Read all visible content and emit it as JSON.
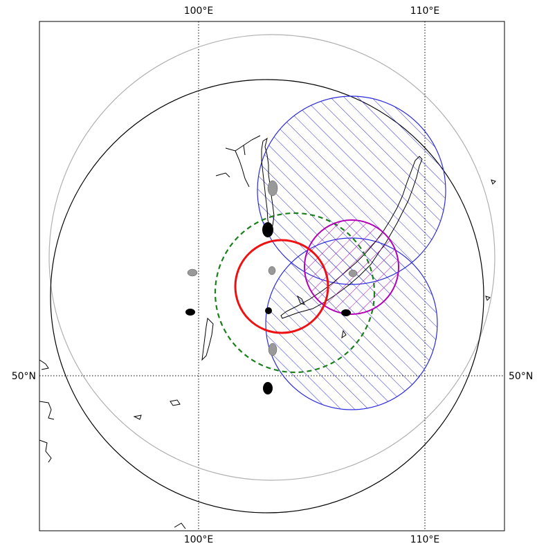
{
  "map": {
    "graticule": {
      "lon_labels": [
        "100°E",
        "110°E"
      ],
      "lat_labels": [
        "50°N"
      ]
    },
    "colors": {
      "coast": "#000000",
      "outer_gray_circle": "#b0b0b0",
      "black_circle": "#000000",
      "blue_hatched": "#2b2bdd",
      "green_dashed": "#1a7f1a",
      "red_circle": "#ee1111",
      "magenta_circle": "#b400b4",
      "gray_marker": "#999999",
      "black_marker": "#000000"
    }
  }
}
